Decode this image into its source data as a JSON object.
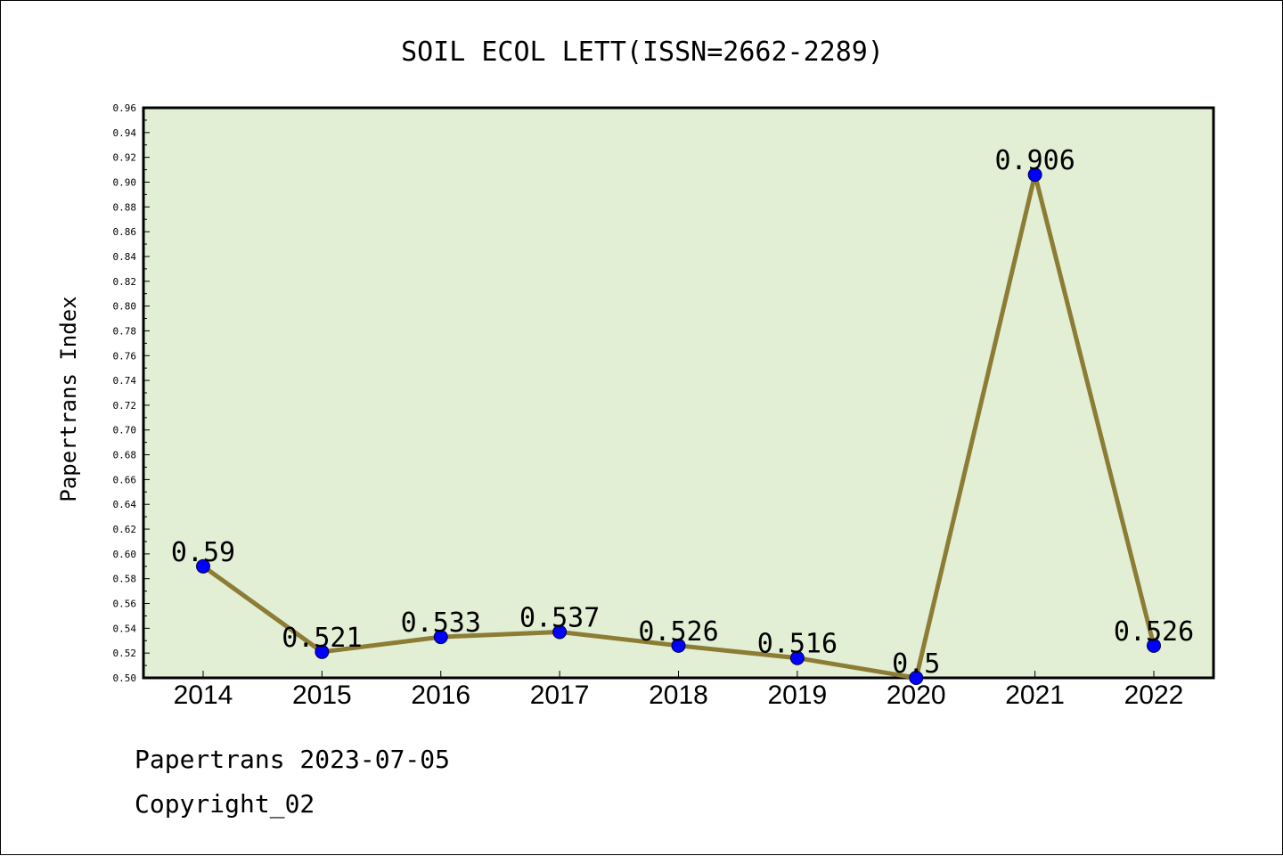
{
  "chart_data": {
    "type": "line",
    "title": "SOIL ECOL LETT(ISSN=2662-2289)",
    "ylabel": "Papertrans Index",
    "xlabel": "",
    "categories": [
      "2014",
      "2015",
      "2016",
      "2017",
      "2018",
      "2019",
      "2020",
      "2021",
      "2022"
    ],
    "values": [
      0.59,
      0.521,
      0.533,
      0.537,
      0.526,
      0.516,
      0.5,
      0.906,
      0.526
    ],
    "data_labels": [
      "0.59",
      "0.521",
      "0.533",
      "0.537",
      "0.526",
      "0.516",
      "0.5",
      "0.906",
      "0.526"
    ],
    "ylim": [
      0.5,
      0.96
    ],
    "y_ticks": [
      "0.50",
      "0.52",
      "0.54",
      "0.56",
      "0.58",
      "0.60",
      "0.62",
      "0.64",
      "0.66",
      "0.68",
      "0.70",
      "0.72",
      "0.74",
      "0.76",
      "0.78",
      "0.80",
      "0.82",
      "0.84",
      "0.86",
      "0.88",
      "0.90",
      "0.92",
      "0.94",
      "0.96"
    ],
    "grid": false,
    "colors": {
      "plot_background": "#e2efd5",
      "line": "#8c7c34",
      "marker": "#0000ff"
    }
  },
  "footer": {
    "line1": "Papertrans 2023-07-05",
    "line2": "Copyright_02"
  }
}
